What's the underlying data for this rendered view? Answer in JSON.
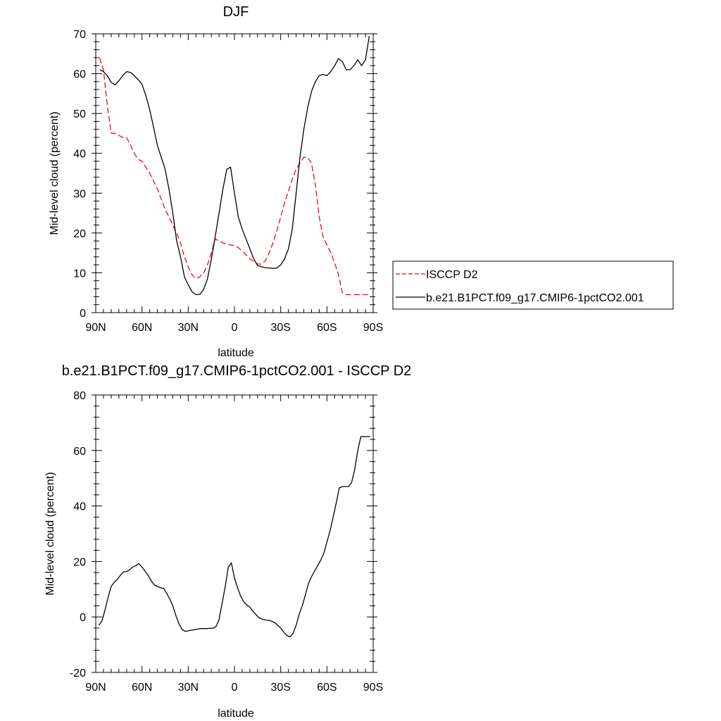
{
  "chart_data": [
    {
      "type": "line",
      "title": "DJF",
      "xlabel": "latitude",
      "ylabel": "Mid-level cloud (percent)",
      "xlim": [
        90,
        -90
      ],
      "ylim": [
        0,
        70
      ],
      "x_ticks": [
        90,
        60,
        30,
        0,
        -30,
        -60,
        -90
      ],
      "x_tick_labels": [
        "90N",
        "60N",
        "30N",
        "0",
        "30S",
        "60S",
        "90S"
      ],
      "y_ticks": [
        0,
        10,
        20,
        30,
        40,
        50,
        60,
        70
      ],
      "y_tick_labels": [
        "0",
        "10",
        "20",
        "30",
        "40",
        "50",
        "60",
        "70"
      ],
      "grid": false,
      "legend": "right",
      "series": [
        {
          "name": "ISCCP D2",
          "color": "#ff0000",
          "style": "dashed",
          "x": [
            87.5,
            85,
            82.5,
            80,
            77.5,
            75,
            72.5,
            70,
            67.5,
            65,
            62.5,
            60,
            57.5,
            55,
            52.5,
            50,
            47.5,
            45,
            42.5,
            40,
            37.5,
            35,
            32.5,
            30,
            27.5,
            25,
            22.5,
            20,
            17.5,
            15,
            12.5,
            10,
            7.5,
            5,
            2.5,
            0,
            -2.5,
            -5,
            -7.5,
            -10,
            -12.5,
            -15,
            -17.5,
            -20,
            -22.5,
            -25,
            -27.5,
            -30,
            -32.5,
            -35,
            -37.5,
            -40,
            -42.5,
            -45,
            -47.5,
            -50,
            -52.5,
            -55,
            -57.5,
            -60,
            -62.5,
            -65,
            -67.5,
            -70,
            -72.5,
            -75,
            -77.5,
            -80,
            -82.5,
            -85,
            -87.5
          ],
          "y": [
            64,
            61,
            52,
            45,
            45,
            44.5,
            44,
            44,
            42,
            40,
            38.5,
            38,
            36.5,
            35,
            33,
            31,
            28.5,
            26,
            24,
            22,
            20,
            17.5,
            14,
            11.5,
            9.5,
            8.5,
            9,
            10,
            12,
            15,
            18.5,
            18,
            17.5,
            17.2,
            17,
            16.8,
            16.3,
            15.5,
            14.5,
            13.5,
            12.8,
            12.2,
            12.2,
            13,
            15,
            17.5,
            20.5,
            24,
            27.5,
            30.5,
            33.5,
            36,
            37.5,
            39,
            39,
            37.5,
            32,
            24,
            19,
            17,
            15,
            12.5,
            9.5,
            5,
            4.5,
            4.5,
            4.5,
            4.5,
            4.5,
            4.5,
            4.5
          ]
        },
        {
          "name": "b.e21.B1PCT.f09_g17.CMIP6-1pctCO2.001",
          "color": "#000000",
          "style": "solid",
          "x": [
            87.5,
            85,
            82.5,
            80,
            77.5,
            75,
            72.5,
            70,
            67.5,
            65,
            62.5,
            60,
            57.5,
            55,
            52.5,
            50,
            47.5,
            45,
            42.5,
            40,
            37.5,
            35,
            32.5,
            30,
            27.5,
            25,
            22.5,
            20,
            17.5,
            15,
            12.5,
            10,
            7.5,
            5,
            2.5,
            0,
            -2.5,
            -5,
            -7.5,
            -10,
            -12.5,
            -15,
            -17.5,
            -20,
            -22.5,
            -25,
            -27.5,
            -30,
            -32.5,
            -35,
            -37.5,
            -40,
            -42.5,
            -45,
            -47.5,
            -50,
            -52.5,
            -55,
            -57.5,
            -60,
            -62.5,
            -65,
            -67.5,
            -70,
            -72.5,
            -75,
            -77.5,
            -80,
            -82.5,
            -85,
            -87.5
          ],
          "y": [
            61,
            60.5,
            59.5,
            57.8,
            57.2,
            58.2,
            59.5,
            60.5,
            60.3,
            59.5,
            58.5,
            57.3,
            54.5,
            51,
            46.5,
            42,
            39,
            36,
            31,
            25,
            18,
            14,
            9,
            7,
            5.2,
            4.5,
            4.6,
            5.8,
            8.5,
            13.5,
            19,
            25,
            31,
            36,
            36.5,
            30,
            24,
            21,
            18.5,
            16,
            13.5,
            11.8,
            11.5,
            11.3,
            11.2,
            11.1,
            11.2,
            12,
            13.5,
            16,
            21,
            30,
            39,
            46,
            51.5,
            55.5,
            58,
            59.5,
            59.8,
            59.5,
            60.5,
            62,
            63.8,
            63,
            61,
            61,
            62,
            63.5,
            62,
            63.5,
            69.5
          ]
        }
      ]
    },
    {
      "type": "line",
      "title": "b.e21.B1PCT.f09_g17.CMIP6-1pctCO2.001 - ISCCP D2",
      "xlabel": "latitude",
      "ylabel": "Mid-level cloud (percent)",
      "xlim": [
        90,
        -90
      ],
      "ylim": [
        -20,
        80
      ],
      "x_ticks": [
        90,
        60,
        30,
        0,
        -30,
        -60,
        -90
      ],
      "x_tick_labels": [
        "90N",
        "60N",
        "30N",
        "0",
        "30S",
        "60S",
        "90S"
      ],
      "y_ticks": [
        -20,
        0,
        20,
        40,
        60,
        80
      ],
      "y_tick_labels": [
        "-20",
        "0",
        "20",
        "40",
        "60",
        "80"
      ],
      "grid": false,
      "series": [
        {
          "color": "#000000",
          "style": "solid",
          "x": [
            88,
            86,
            84,
            82,
            80,
            78,
            76,
            74,
            72,
            70,
            68,
            66,
            64,
            62,
            60,
            58,
            56,
            54,
            52,
            50,
            48,
            46,
            44,
            42,
            40,
            38,
            36,
            34,
            32,
            30,
            28,
            26,
            24,
            22,
            20,
            18,
            16,
            14,
            12,
            10,
            8,
            6,
            4,
            2,
            0,
            -2,
            -4,
            -6,
            -8,
            -10,
            -12,
            -14,
            -16,
            -18,
            -20,
            -22,
            -24,
            -26,
            -28,
            -30,
            -32,
            -34,
            -36,
            -38,
            -40,
            -42,
            -44,
            -46,
            -48,
            -50,
            -52,
            -54,
            -56,
            -58,
            -60,
            -62,
            -64,
            -66,
            -68,
            -70,
            -72,
            -74,
            -76,
            -78,
            -80,
            -82,
            -84,
            -86,
            -88
          ],
          "y": [
            -3,
            -1.5,
            2.5,
            7,
            11,
            12.5,
            13.5,
            15,
            16.3,
            16.3,
            17,
            18,
            18.5,
            19.2,
            18,
            16.5,
            15,
            13,
            11.5,
            11,
            10.5,
            10.3,
            8.5,
            6.5,
            4,
            0.5,
            -2.5,
            -4.5,
            -5.2,
            -5,
            -4.8,
            -4.6,
            -4.4,
            -4.2,
            -4.2,
            -4.2,
            -4.1,
            -4.1,
            -3.5,
            -1,
            5,
            11,
            18,
            19.5,
            14,
            10.5,
            7.5,
            5.5,
            4.3,
            3.5,
            2,
            0.8,
            -0.3,
            -0.8,
            -1.1,
            -1.2,
            -1.5,
            -2,
            -3,
            -4,
            -5.5,
            -6.7,
            -7.2,
            -6,
            -3,
            1,
            4,
            8,
            12,
            14.5,
            16.5,
            18.5,
            20.5,
            23,
            27,
            31,
            36,
            41,
            46.5,
            47,
            47,
            47,
            48.5,
            53,
            60,
            65,
            65,
            65,
            65
          ]
        }
      ]
    }
  ]
}
